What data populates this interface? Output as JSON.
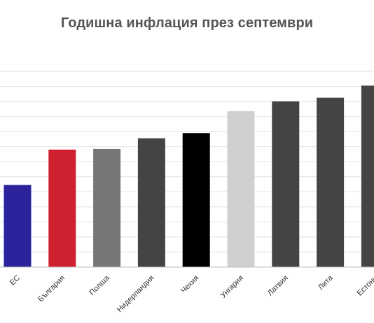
{
  "chart_data": {
    "type": "bar",
    "title": "Годишна инфлация през септември",
    "xlabel": "",
    "ylabel": "",
    "ylim": [
      0,
      26
    ],
    "grid": true,
    "categories": [
      "ЕС",
      "България",
      "Полша",
      "Нидерландия",
      "Чехия",
      "Унгария",
      "Латвия",
      "Лита",
      "Естони"
    ],
    "values": [
      10.9,
      15.6,
      15.7,
      17.1,
      17.8,
      20.7,
      22.0,
      22.5,
      24.1
    ],
    "colors": [
      "#2b239c",
      "#cf2030",
      "#767676",
      "#444444",
      "#000000",
      "#d0d0d0",
      "#444444",
      "#444444",
      "#444444"
    ]
  }
}
